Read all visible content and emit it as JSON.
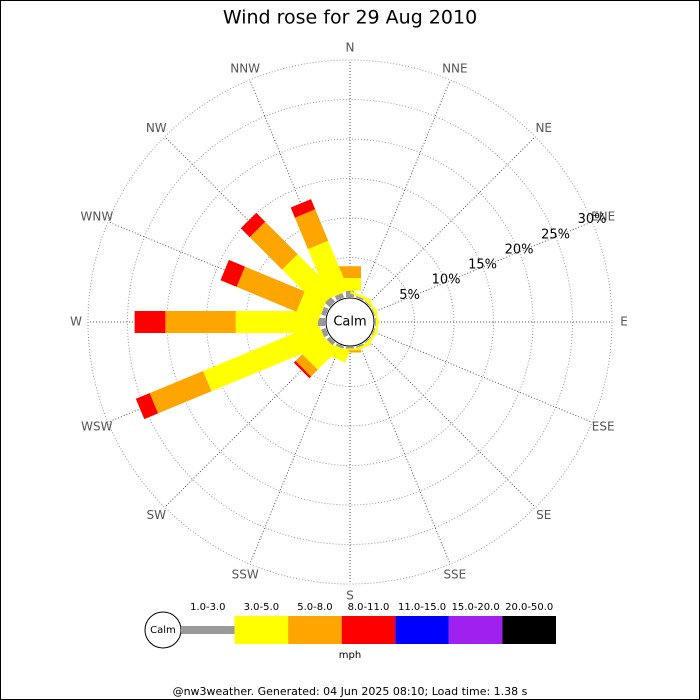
{
  "chart_data": {
    "type": "windrose",
    "title": "Wind rose for 29 Aug 2010",
    "directions": [
      "N",
      "NNE",
      "NE",
      "ENE",
      "E",
      "ESE",
      "SE",
      "SSE",
      "S",
      "SSW",
      "SW",
      "WSW",
      "W",
      "WNW",
      "NW",
      "NNW"
    ],
    "calm_label": "Calm",
    "unit": "mph",
    "rlim": [
      0,
      30
    ],
    "rticks": [
      {
        "value": 5,
        "label": "5%"
      },
      {
        "value": 10,
        "label": "10%"
      },
      {
        "value": 15,
        "label": "15%"
      },
      {
        "value": 20,
        "label": "20%"
      },
      {
        "value": 25,
        "label": "25%"
      },
      {
        "value": 30,
        "label": "30%"
      }
    ],
    "series": [
      {
        "name": "1.0-3.0",
        "color": "#999999",
        "values": [
          0.8,
          0.2,
          0.1,
          0.1,
          0.1,
          0.1,
          0.1,
          0.2,
          0.2,
          0.3,
          0.5,
          0.6,
          0.9,
          0.6,
          0.8,
          0.6
        ]
      },
      {
        "name": "3.0-5.0",
        "color": "#ffff00",
        "values": [
          1.6,
          0.3,
          0.2,
          0.2,
          0.2,
          0.2,
          0.2,
          0.3,
          0.2,
          1.5,
          3.5,
          15.8,
          10.4,
          3.0,
          6.8,
          6.8
        ]
      },
      {
        "name": "5.0-8.0",
        "color": "#ffa500",
        "values": [
          1.5,
          0,
          0,
          0,
          0,
          0,
          0,
          0,
          0.3,
          0,
          1.2,
          7.3,
          8.9,
          8.2,
          5.8,
          4.3
        ]
      },
      {
        "name": "8.0-11.0",
        "color": "#ff0000",
        "values": [
          0,
          0,
          0,
          0,
          0,
          0,
          0,
          0,
          0,
          0,
          0.3,
          1.9,
          3.9,
          2.2,
          1.6,
          1.4
        ]
      },
      {
        "name": "11.0-15.0",
        "color": "#0000ff",
        "values": [
          0,
          0,
          0,
          0,
          0,
          0,
          0,
          0,
          0,
          0,
          0,
          0,
          0,
          0,
          0,
          0
        ]
      },
      {
        "name": "15.0-20.0",
        "color": "#a020f0",
        "values": [
          0,
          0,
          0,
          0,
          0,
          0,
          0,
          0,
          0,
          0,
          0,
          0,
          0,
          0,
          0,
          0
        ]
      },
      {
        "name": "20.0-50.0",
        "color": "#000000",
        "values": [
          0,
          0,
          0,
          0,
          0,
          0,
          0,
          0,
          0,
          0,
          0,
          0,
          0,
          0,
          0,
          0
        ]
      }
    ],
    "footer": "@nw3weather. Generated: 04 Jun 2025 08:10; Load time: 1.38 s"
  }
}
